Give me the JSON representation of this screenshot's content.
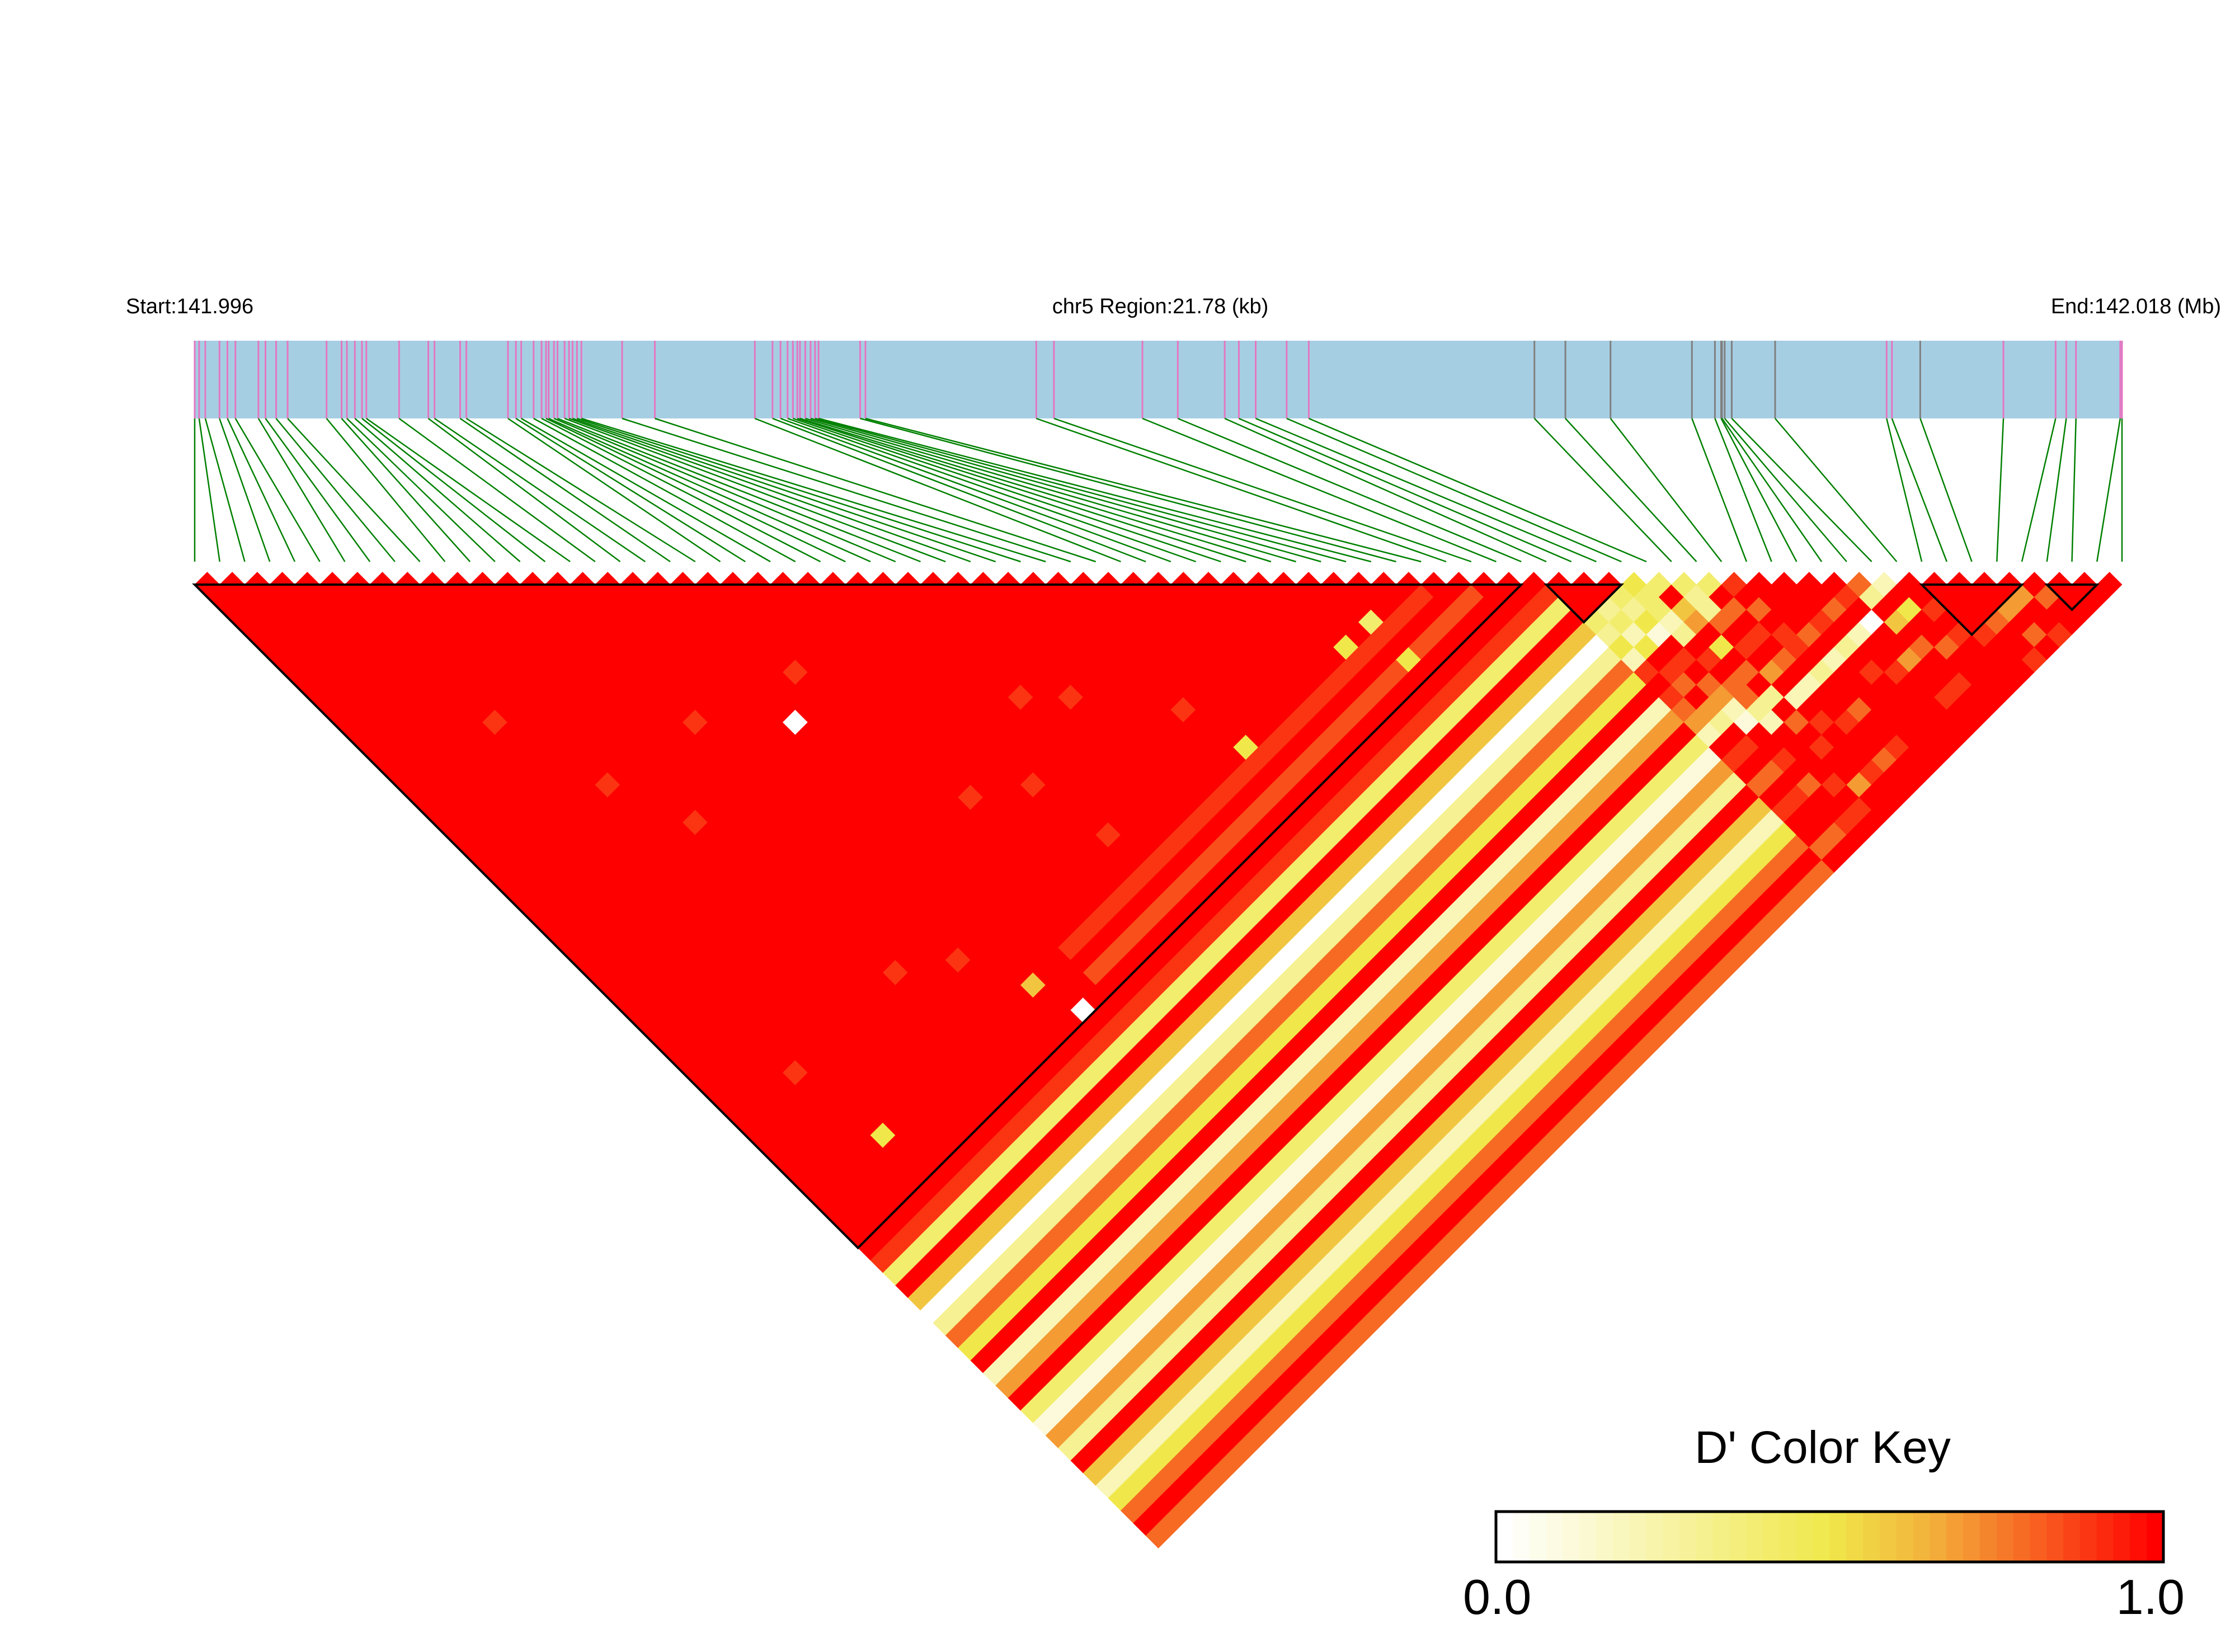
{
  "chart_data": {
    "type": "heatmap",
    "subtype": "LD triangle (D')",
    "header": {
      "start_label": "Start:141.996",
      "region_label": "chr5 Region:21.78 (kb)",
      "end_label": "End:142.018 (Mb)"
    },
    "region_kb": [
      0,
      21.78
    ],
    "snp_positions_kb": [
      0,
      0.05,
      0.12,
      0.28,
      0.37,
      0.46,
      0.72,
      0.8,
      0.92,
      1.05,
      1.49,
      1.66,
      1.72,
      1.81,
      1.89,
      1.94,
      2.31,
      2.64,
      2.71,
      3.0,
      3.07,
      3.54,
      3.63,
      3.69,
      3.83,
      3.92,
      3.97,
      4.0,
      4.06,
      4.1,
      4.18,
      4.23,
      4.27,
      4.32,
      4.37,
      4.83,
      5.2,
      6.33,
      6.53,
      6.62,
      6.7,
      6.76,
      6.81,
      6.84,
      6.9,
      6.96,
      7.01,
      7.05,
      7.52,
      7.58,
      9.51,
      9.71,
      10.71,
      11.11,
      11.64,
      11.8,
      11.99,
      12.34,
      12.59,
      15.14,
      15.49,
      16.0,
      16.92,
      17.18,
      17.25,
      17.26,
      17.29,
      17.37,
      17.86,
      19.12,
      19.18,
      19.5,
      20.44,
      21.03,
      21.15,
      21.26,
      21.76,
      21.78
    ],
    "grey_marker_snps": [
      59,
      60,
      61,
      62,
      63,
      64,
      65,
      66,
      67,
      68,
      71
    ],
    "value_encoding": "digit = tenths of D', 'a' = 1.0",
    "default_dprime": 1.0,
    "blocks": [
      [
        0,
        53
      ],
      [
        54,
        57
      ],
      [
        69,
        73
      ],
      [
        74,
        76
      ]
    ],
    "block1_exceptions": [
      [
        18,
        30,
        0.0
      ],
      [
        18,
        53,
        0.0
      ],
      [
        45,
        49,
        0.4
      ],
      [
        43,
        49,
        0.5
      ],
      [
        45,
        52,
        0.5
      ],
      [
        35,
        49,
        0.5
      ],
      [
        17,
        50,
        0.6
      ],
      [
        5,
        50,
        0.5
      ],
      [
        10,
        30,
        0.9
      ],
      [
        6,
        18,
        0.9
      ],
      [
        8,
        25,
        0.9
      ],
      [
        14,
        26,
        0.9
      ],
      [
        20,
        28,
        0.9
      ],
      [
        22,
        40,
        0.9
      ],
      [
        30,
        40,
        0.9
      ],
      [
        34,
        45,
        0.9
      ],
      [
        28,
        38,
        0.9
      ],
      [
        12,
        44,
        0.9
      ],
      [
        25,
        42,
        0.9
      ],
      [
        4,
        44,
        0.9
      ],
      [
        26,
        47,
        0.9
      ],
      [
        15,
        46,
        0.9
      ]
    ],
    "block1_column_dprime": {
      "50": 0.9,
      "52": 0.85
    },
    "columns_vs_block1": "a94a60385a27a4173a6258a8",
    "right_region_rows": [
      "aaa43529a9872a9a8a9aa8a",
      "aa3425a98a73a9a8a9aa8a",
      "a4351a9a8721aa9a8aa9a",
      "54423a9a8832aaaa9a9a",
      "4a67a5a8a3a8a9aa7aa",
      "4338a9a7a2a9aaa9aa",
      "4a8a9a8a2aa9aa8aa",
      "9a8a99a3aa8aa9aa",
      "aaaa8a2aaaaaaaa",
      "aaa9a3a9aaaaaa",
      "aa8a2aa9aaaaa",
      "a9a0aa7aa9aa",
      "83a6a8aa9aa",
      "2a5aa8aaaa",
      "aa9a9aaaa",
      "aaaa9aaa",
      "aaa8aa9",
      "aa7a8a",
      "a7aa9",
      "a8aa",
      "aaa",
      "aa",
      "a"
    ],
    "color_key": {
      "title": "D' Color Key",
      "min_label": "0.0",
      "max_label": "1.0",
      "range": [
        0,
        1
      ],
      "stops": [
        [
          0,
          "#ffffff"
        ],
        [
          0.5,
          "#f0e84a"
        ],
        [
          0.65,
          "#f3b33c"
        ],
        [
          0.8,
          "#f76a24"
        ],
        [
          1,
          "#ff0000"
        ]
      ]
    },
    "colors": {
      "region_bar": "#a6cee3",
      "marker_pink": "#e377c2",
      "marker_grey": "#808080",
      "connector": "#008000"
    }
  }
}
